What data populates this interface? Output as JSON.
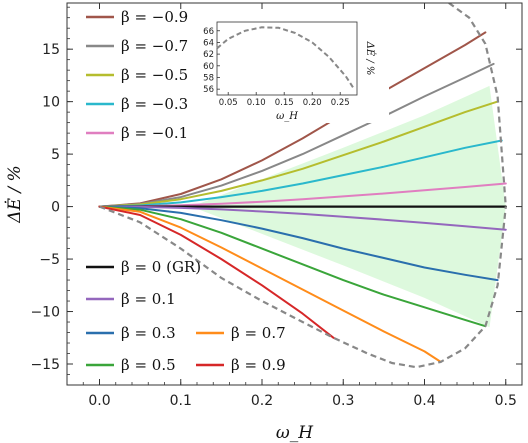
{
  "chart_data": {
    "type": "line",
    "xlabel": "ω_H",
    "ylabel": "ΔĖ / %",
    "xlim": [
      -0.04,
      0.52
    ],
    "ylim": [
      -17,
      19.4
    ],
    "xticks": [
      0.0,
      0.1,
      0.2,
      0.3,
      0.4,
      0.5
    ],
    "xtick_labels": [
      "0.0",
      "0.1",
      "0.2",
      "0.3",
      "0.4",
      "0.5"
    ],
    "yticks": [
      -15,
      -10,
      -5,
      0,
      5,
      10,
      15
    ],
    "ytick_labels": [
      "−15",
      "−10",
      "−5",
      "0",
      "5",
      "10",
      "15"
    ],
    "grid": false,
    "shaded_band": {
      "color": "#ddf9dd",
      "description_values": "between β=0.3 upper curve and β=-0.3 mirrored region",
      "upper": [
        [
          0.12,
          0.2
        ],
        [
          0.2,
          2.6
        ],
        [
          0.3,
          5.6
        ],
        [
          0.4,
          8.7
        ],
        [
          0.48,
          11.5
        ]
      ],
      "lower": [
        [
          0.12,
          -0.2
        ],
        [
          0.2,
          -2.6
        ],
        [
          0.3,
          -5.6
        ],
        [
          0.4,
          -8.7
        ],
        [
          0.48,
          -11.5
        ]
      ]
    },
    "series": [
      {
        "name": "β = −0.9",
        "color": "#a0564a",
        "x": [
          0.0,
          0.05,
          0.1,
          0.15,
          0.2,
          0.25,
          0.3,
          0.35,
          0.4,
          0.45,
          0.475
        ],
        "y": [
          0.0,
          0.3,
          1.2,
          2.6,
          4.4,
          6.5,
          8.8,
          11.0,
          13.2,
          15.4,
          16.6
        ]
      },
      {
        "name": "β = −0.7",
        "color": "#888888",
        "x": [
          0.0,
          0.05,
          0.1,
          0.15,
          0.2,
          0.25,
          0.3,
          0.35,
          0.4,
          0.45,
          0.485
        ],
        "y": [
          0.0,
          0.25,
          0.9,
          2.0,
          3.4,
          5.0,
          6.8,
          8.6,
          10.5,
          12.3,
          13.6
        ]
      },
      {
        "name": "β = −0.5",
        "color": "#b5bd2e",
        "x": [
          0.0,
          0.05,
          0.1,
          0.15,
          0.2,
          0.25,
          0.3,
          0.35,
          0.4,
          0.45,
          0.49
        ],
        "y": [
          0.0,
          0.2,
          0.7,
          1.5,
          2.5,
          3.6,
          4.9,
          6.2,
          7.6,
          9.0,
          10.0
        ]
      },
      {
        "name": "β = −0.3",
        "color": "#2ab8cc",
        "x": [
          0.0,
          0.05,
          0.1,
          0.15,
          0.2,
          0.25,
          0.3,
          0.35,
          0.4,
          0.45,
          0.495
        ],
        "y": [
          0.0,
          0.1,
          0.4,
          0.9,
          1.5,
          2.2,
          3.0,
          3.8,
          4.7,
          5.6,
          6.3
        ]
      },
      {
        "name": "β = −0.1",
        "color": "#e07ec0",
        "x": [
          0.0,
          0.05,
          0.1,
          0.15,
          0.2,
          0.25,
          0.3,
          0.35,
          0.4,
          0.45,
          0.5
        ],
        "y": [
          0.0,
          0.03,
          0.12,
          0.27,
          0.47,
          0.7,
          0.97,
          1.25,
          1.55,
          1.87,
          2.2
        ]
      },
      {
        "name": "β = 0 (GR)",
        "color": "#111111",
        "x": [
          0.0,
          0.5
        ],
        "y": [
          0.0,
          0.0
        ]
      },
      {
        "name": "β = 0.1",
        "color": "#9467bd",
        "x": [
          0.0,
          0.05,
          0.1,
          0.15,
          0.2,
          0.25,
          0.3,
          0.35,
          0.4,
          0.45,
          0.5
        ],
        "y": [
          0.0,
          -0.03,
          -0.12,
          -0.27,
          -0.47,
          -0.7,
          -0.97,
          -1.25,
          -1.55,
          -1.87,
          -2.2
        ]
      },
      {
        "name": "β = 0.3",
        "color": "#2a6fad",
        "x": [
          0.0,
          0.05,
          0.1,
          0.15,
          0.2,
          0.25,
          0.3,
          0.35,
          0.4,
          0.45,
          0.49
        ],
        "y": [
          0.0,
          -0.15,
          -0.6,
          -1.3,
          -2.1,
          -3.0,
          -4.0,
          -4.9,
          -5.8,
          -6.5,
          -7.0
        ]
      },
      {
        "name": "β = 0.5",
        "color": "#3aa53a",
        "x": [
          0.0,
          0.05,
          0.1,
          0.15,
          0.2,
          0.25,
          0.3,
          0.35,
          0.4,
          0.45,
          0.475
        ],
        "y": [
          0.0,
          -0.3,
          -1.2,
          -2.5,
          -4.0,
          -5.5,
          -7.0,
          -8.4,
          -9.6,
          -10.8,
          -11.4
        ]
      },
      {
        "name": "β = 0.7",
        "color": "#ff8c1a",
        "x": [
          0.0,
          0.05,
          0.1,
          0.15,
          0.2,
          0.25,
          0.3,
          0.35,
          0.4,
          0.42
        ],
        "y": [
          0.0,
          -0.5,
          -2.0,
          -3.9,
          -5.9,
          -7.9,
          -9.9,
          -11.9,
          -13.8,
          -14.8
        ]
      },
      {
        "name": "β = 0.9",
        "color": "#d62728",
        "x": [
          0.0,
          0.05,
          0.1,
          0.15,
          0.2,
          0.25,
          0.288
        ],
        "y": [
          0.0,
          -0.8,
          -2.7,
          -5.0,
          -7.5,
          -10.2,
          -12.5
        ]
      }
    ],
    "boundary": {
      "color": "#888888",
      "style": "dashed",
      "upper": {
        "x": [
          0.43,
          0.455,
          0.475,
          0.49,
          0.5
        ],
        "y": [
          19.4,
          18.0,
          15.5,
          10.5,
          0.0
        ]
      },
      "lower": {
        "x": [
          0.0,
          0.05,
          0.1,
          0.15,
          0.2,
          0.25,
          0.288,
          0.33,
          0.36,
          0.39,
          0.42,
          0.45,
          0.475,
          0.49,
          0.5
        ],
        "y": [
          0.0,
          -1.5,
          -4.0,
          -6.8,
          -9.0,
          -11.0,
          -12.5,
          -14.0,
          -14.9,
          -15.3,
          -14.8,
          -13.5,
          -11.4,
          -7.5,
          0.0
        ]
      }
    },
    "inset": {
      "xlabel": "ω_H",
      "ylabel": "ΔĖ / %",
      "xlim": [
        0.03,
        0.28
      ],
      "ylim": [
        55,
        67.5
      ],
      "xtick_labels": [
        "0.05",
        "0.10",
        "0.15",
        "0.20",
        "0.25"
      ],
      "xticks": [
        0.05,
        0.1,
        0.15,
        0.2,
        0.25
      ],
      "ytick_labels": [
        "56",
        "58",
        "60",
        "62",
        "64",
        "66"
      ],
      "yticks": [
        56,
        58,
        60,
        62,
        64,
        66
      ],
      "curve": {
        "x": [
          0.03,
          0.05,
          0.08,
          0.11,
          0.14,
          0.17,
          0.2,
          0.23,
          0.26,
          0.275
        ],
        "y": [
          63.0,
          64.6,
          66.0,
          66.6,
          66.5,
          65.6,
          64.0,
          61.5,
          58.2,
          56.0
        ]
      }
    },
    "legend_top_labels": [
      "β = −0.9",
      "β = −0.7",
      "β = −0.5",
      "β = −0.3",
      "β = −0.1"
    ],
    "legend_bottom_labels": [
      "β = 0 (GR)",
      "β = 0.1",
      "β = 0.3",
      "β = 0.7",
      "β = 0.5",
      "β = 0.9"
    ]
  }
}
